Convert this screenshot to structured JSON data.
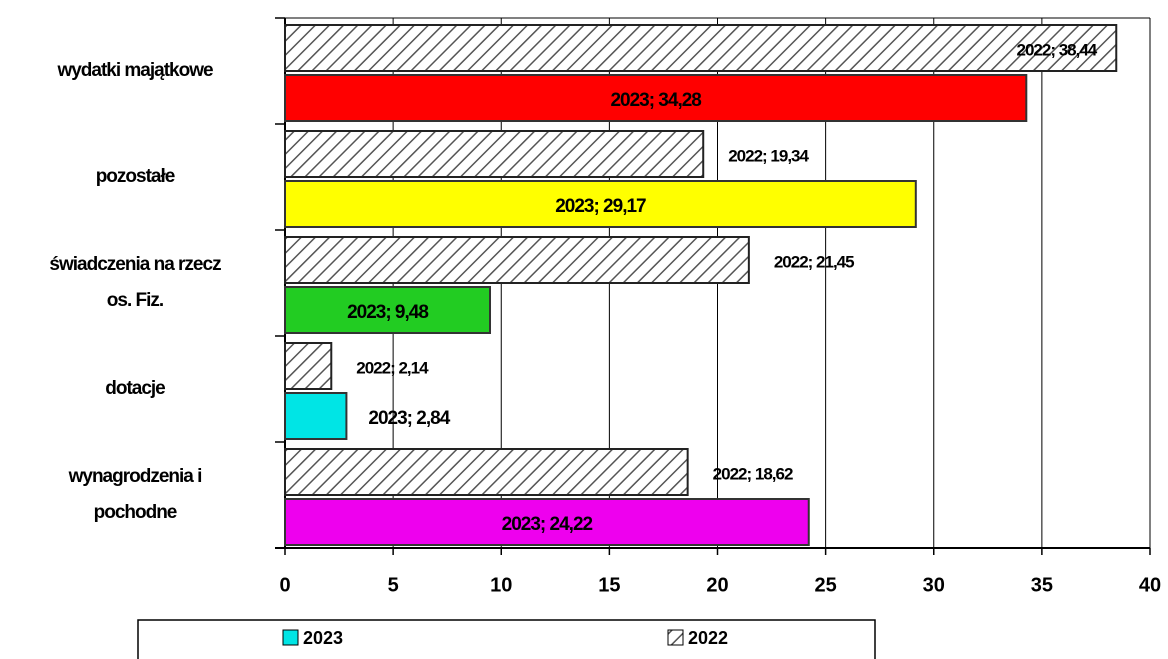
{
  "chart_data": {
    "type": "bar",
    "orientation": "horizontal",
    "categories": [
      [
        "wydatki majątkowe"
      ],
      [
        "pozostałe"
      ],
      [
        "świadczenia na rzecz",
        "os. Fiz."
      ],
      [
        "dotacje"
      ],
      [
        "wynagrodzenia i",
        "pochodne"
      ]
    ],
    "series": [
      {
        "name": "2022",
        "color": "#808080",
        "pattern": "diagonal-hatch",
        "values": [
          38.44,
          19.34,
          21.45,
          2.14,
          18.62
        ],
        "value_labels": [
          "2022; 38,44",
          "2022; 19,34",
          "2022; 21,45",
          "2022; 2,14",
          "2022; 18,62"
        ]
      },
      {
        "name": "2023",
        "color": "#00e5e5",
        "colors": [
          "#ff0000",
          "#ffff00",
          "#22cc22",
          "#00e5e5",
          "#ee00ee"
        ],
        "values": [
          34.28,
          29.17,
          9.48,
          2.84,
          24.22
        ],
        "value_labels": [
          "2023; 34,28",
          "2023; 29,17",
          "2023; 9,48",
          "2023; 2,84",
          "2023; 24,22"
        ]
      }
    ],
    "xlim": [
      0,
      40
    ],
    "xticks": [
      0,
      5,
      10,
      15,
      20,
      25,
      30,
      35,
      40
    ],
    "grid": true,
    "legend": "bottom"
  }
}
